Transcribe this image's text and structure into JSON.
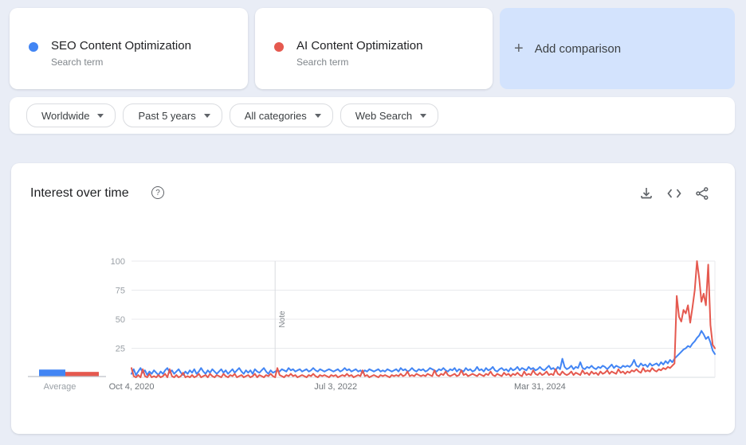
{
  "comparison_cards": [
    {
      "title": "SEO Content Optimization",
      "subtitle": "Search term",
      "color": "#4285f4"
    },
    {
      "title": "AI Content Optimization",
      "subtitle": "Search term",
      "color": "#e5594f"
    }
  ],
  "add_comparison": {
    "plus": "+",
    "label": "Add comparison",
    "background": "#d3e3fd"
  },
  "filters": [
    {
      "label": "Worldwide"
    },
    {
      "label": "Past 5 years"
    },
    {
      "label": "All categories"
    },
    {
      "label": "Web Search"
    }
  ],
  "chart_section": {
    "title": "Interest over time",
    "help_glyph": "?",
    "actions": [
      {
        "name": "download"
      },
      {
        "name": "embed-code"
      },
      {
        "name": "share"
      }
    ]
  },
  "chart_data": {
    "type": "line",
    "title": "Interest over time",
    "x_unit": "weekly",
    "x_range": [
      "Oct 4, 2020",
      "Sep 28, 2025"
    ],
    "ylim": [
      0,
      100
    ],
    "grid": true,
    "yticks": [
      100,
      75,
      50,
      25
    ],
    "xticks": [
      {
        "label": "Oct 4, 2020",
        "week": 0
      },
      {
        "label": "Jul 3, 2022",
        "week": 91
      },
      {
        "label": "Mar 31, 2024",
        "week": 182
      }
    ],
    "note_marker": {
      "label": "Note",
      "week": 64
    },
    "series": [
      {
        "name": "SEO Content Optimization",
        "color": "#4285f4",
        "values": [
          3,
          7,
          2,
          5,
          8,
          4,
          6,
          2,
          5,
          3,
          6,
          4,
          2,
          5,
          3,
          6,
          8,
          4,
          6,
          3,
          5,
          7,
          4,
          2,
          5,
          3,
          6,
          4,
          7,
          3,
          5,
          8,
          5,
          3,
          6,
          4,
          7,
          5,
          3,
          5,
          7,
          4,
          6,
          3,
          5,
          7,
          4,
          6,
          8,
          5,
          3,
          6,
          4,
          6,
          3,
          7,
          5,
          4,
          6,
          8,
          5,
          3,
          6,
          4,
          5,
          6,
          5,
          7,
          6,
          5,
          8,
          6,
          7,
          5,
          6,
          7,
          5,
          6,
          7,
          5,
          6,
          8,
          6,
          5,
          7,
          6,
          5,
          6,
          7,
          6,
          5,
          6,
          7,
          5,
          6,
          8,
          6,
          7,
          5,
          6,
          7,
          5,
          6,
          4,
          6,
          5,
          7,
          6,
          5,
          6,
          7,
          5,
          6,
          5,
          7,
          6,
          5,
          6,
          7,
          5,
          8,
          6,
          7,
          5,
          6,
          8,
          6,
          5,
          7,
          6,
          7,
          5,
          6,
          8,
          7,
          6,
          5,
          7,
          6,
          8,
          6,
          5,
          7,
          6,
          8,
          5,
          7,
          6,
          5,
          8,
          6,
          7,
          5,
          6,
          9,
          6,
          7,
          5,
          8,
          6,
          7,
          9,
          6,
          5,
          7,
          8,
          6,
          7,
          5,
          8,
          6,
          7,
          9,
          6,
          8,
          7,
          6,
          9,
          7,
          8,
          6,
          7,
          9,
          7,
          6,
          8,
          10,
          7,
          8,
          6,
          9,
          7,
          16,
          9,
          7,
          8,
          10,
          7,
          9,
          8,
          13,
          8,
          7,
          9,
          8,
          10,
          8,
          7,
          9,
          8,
          10,
          9,
          7,
          9,
          11,
          8,
          10,
          9,
          8,
          10,
          9,
          10,
          9,
          11,
          15,
          10,
          9,
          12,
          10,
          11,
          9,
          12,
          10,
          11,
          12,
          10,
          13,
          11,
          14,
          12,
          15,
          13,
          16,
          18,
          20,
          22,
          24,
          25,
          27,
          26,
          29,
          31,
          34,
          36,
          40,
          37,
          33,
          35,
          30,
          23,
          20
        ]
      },
      {
        "name": "AI Content Optimization",
        "color": "#e5594f",
        "values": [
          8,
          1,
          0,
          2,
          0,
          7,
          1,
          0,
          3,
          0,
          1,
          0,
          2,
          0,
          1,
          3,
          0,
          7,
          1,
          0,
          2,
          0,
          1,
          4,
          0,
          1,
          0,
          2,
          0,
          1,
          3,
          0,
          1,
          2,
          0,
          3,
          1,
          0,
          2,
          1,
          0,
          3,
          1,
          0,
          2,
          1,
          3,
          0,
          1,
          2,
          0,
          1,
          2,
          0,
          1,
          3,
          0,
          2,
          1,
          0,
          2,
          1,
          3,
          1,
          0,
          8,
          2,
          1,
          0,
          2,
          1,
          3,
          1,
          2,
          0,
          1,
          2,
          1,
          0,
          2,
          1,
          3,
          1,
          0,
          2,
          1,
          2,
          1,
          0,
          2,
          1,
          2,
          0,
          1,
          2,
          1,
          3,
          1,
          2,
          0,
          1,
          2,
          1,
          6,
          1,
          2,
          0,
          1,
          2,
          1,
          0,
          2,
          1,
          2,
          1,
          0,
          2,
          1,
          2,
          1,
          3,
          1,
          2,
          5,
          1,
          2,
          1,
          3,
          2,
          1,
          2,
          1,
          3,
          2,
          1,
          6,
          2,
          1,
          3,
          2,
          5,
          2,
          1,
          2,
          3,
          1,
          2,
          6,
          2,
          3,
          1,
          2,
          3,
          2,
          1,
          3,
          2,
          1,
          3,
          2,
          5,
          2,
          1,
          3,
          2,
          1,
          4,
          2,
          3,
          1,
          3,
          2,
          4,
          2,
          1,
          5,
          2,
          3,
          2,
          6,
          3,
          2,
          4,
          2,
          3,
          5,
          2,
          3,
          2,
          7,
          3,
          2,
          5,
          3,
          2,
          3,
          5,
          2,
          4,
          3,
          2,
          6,
          3,
          4,
          2,
          5,
          3,
          4,
          2,
          5,
          3,
          4,
          6,
          3,
          5,
          4,
          3,
          7,
          4,
          5,
          3,
          5,
          4,
          6,
          5,
          7,
          5,
          4,
          8,
          5,
          6,
          5,
          8,
          6,
          5,
          7,
          6,
          8,
          7,
          9,
          8,
          10,
          12,
          70,
          52,
          48,
          58,
          55,
          62,
          47,
          60,
          75,
          100,
          85,
          65,
          72,
          62,
          97,
          45,
          28,
          25
        ]
      }
    ],
    "averages": {
      "label": "Average",
      "values": [
        {
          "name": "SEO Content Optimization",
          "value": 6,
          "color": "#4285f4"
        },
        {
          "name": "AI Content Optimization",
          "value": 4,
          "color": "#e5594f"
        }
      ]
    }
  }
}
